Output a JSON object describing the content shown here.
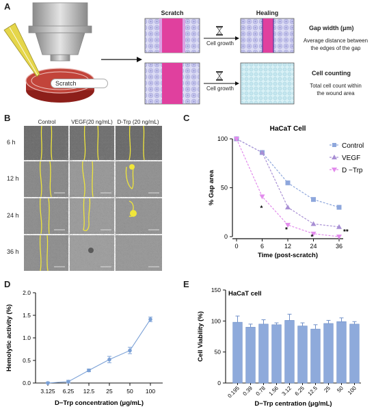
{
  "panelA": {
    "label": "A",
    "scratch_dish": "Scratch",
    "scratch_title": "Scratch",
    "healing_title": "Healing",
    "cell_growth_1": "Cell growth",
    "cell_growth_2": "Cell growth",
    "gap_width_title": "Gap width (μm)",
    "gap_width_desc_1": "Average distance between",
    "gap_width_desc_2": "the edges of the gap",
    "cell_count_title": "Cell counting",
    "cell_count_desc_1": "Total cell count within",
    "cell_count_desc_2": "the wound area",
    "colors": {
      "scratch": "#e0409e",
      "cells": "#c7c7ef",
      "dish": "#b8352d",
      "probe": "#e8d84a"
    }
  },
  "panelB": {
    "label": "B",
    "columns": [
      "Control",
      "VEGF(20 ng/mL)",
      "D-Trp (20 ng/mL)"
    ],
    "rows": [
      "6 h",
      "12 h",
      "24 h",
      "36 h"
    ]
  },
  "chart_data": [
    {
      "id": "C",
      "type": "line",
      "title": "HaCaT Cell",
      "xlabel": "Time (post-scratch)",
      "ylabel": "% Gap area",
      "x": [
        0,
        6,
        12,
        24,
        36
      ],
      "xticks": [
        "0",
        "6",
        "12",
        "24",
        "36"
      ],
      "yticks": [
        "0",
        "50",
        "100"
      ],
      "ylim": [
        0,
        100
      ],
      "legend": "right",
      "series": [
        {
          "name": "Control",
          "values": [
            100,
            86,
            55,
            38,
            30
          ],
          "color": "#8ea7dc",
          "marker": "square"
        },
        {
          "name": "VEGF",
          "values": [
            100,
            86,
            30,
            13,
            10
          ],
          "color": "#a88fd4",
          "marker": "triangle"
        },
        {
          "name": "D −Trp",
          "values": [
            100,
            41,
            12,
            3,
            0
          ],
          "color": "#e28bec",
          "marker": "down-triangle"
        }
      ],
      "annotations": [
        "*",
        "*",
        "*",
        "**"
      ]
    },
    {
      "id": "D",
      "type": "line",
      "xlabel": "D−Trp concentration (μg/mL)",
      "ylabel": "Hemolytic activity (%)",
      "categories": [
        "3.125",
        "6.25",
        "12.5",
        "25",
        "50",
        "100"
      ],
      "values": [
        0,
        0.03,
        0.28,
        0.52,
        0.72,
        1.41
      ],
      "errors": [
        0.02,
        0.03,
        0.03,
        0.07,
        0.07,
        0.05
      ],
      "yticks": [
        "0.0",
        "0.5",
        "1.0",
        "1.5",
        "2.0"
      ],
      "ylim": [
        0,
        2
      ],
      "color": "#7aa0d6"
    },
    {
      "id": "E",
      "type": "bar",
      "title": "HaCaT cell",
      "xlabel": "D−Trp centration (μg/mL)",
      "ylabel": "Cell Viability (%)",
      "categories": [
        "0.195",
        "0.39",
        "0.78",
        "1.56",
        "3.12",
        "6.25",
        "12.5",
        "25",
        "50",
        "100"
      ],
      "values": [
        98,
        90,
        95,
        94,
        101,
        92,
        87,
        96,
        99,
        95
      ],
      "errors": [
        10,
        5,
        7,
        3,
        10,
        5,
        7,
        5,
        6,
        4
      ],
      "yticks": [
        "0",
        "50",
        "100",
        "150"
      ],
      "ylim": [
        0,
        150
      ],
      "color": "#8eaadb"
    }
  ],
  "labels": {
    "C": "C",
    "D": "D",
    "E": "E"
  }
}
